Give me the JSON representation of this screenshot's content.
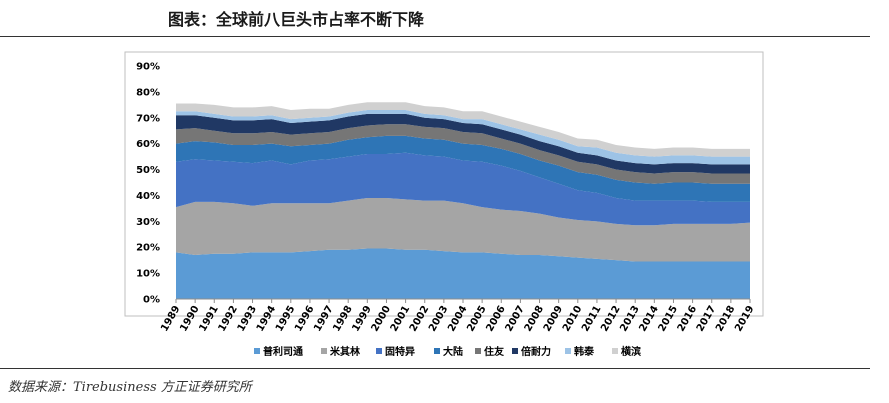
{
  "header": {
    "title": "图表：全球前八巨头市占率不断下降"
  },
  "footer": {
    "source": "数据来源：Tirebusiness 方正证券研究所"
  },
  "chart_data": {
    "type": "area",
    "stacked": true,
    "title": "",
    "xlabel": "",
    "ylabel": "",
    "ylim": [
      0,
      90
    ],
    "y_ticks": [
      "0%",
      "10%",
      "20%",
      "30%",
      "40%",
      "50%",
      "60%",
      "70%",
      "80%",
      "90%"
    ],
    "grid": false,
    "legend_position": "bottom",
    "x": [
      "1989",
      "1990",
      "1991",
      "1992",
      "1993",
      "1994",
      "1995",
      "1996",
      "1997",
      "1998",
      "1999",
      "2000",
      "2001",
      "2002",
      "2003",
      "2004",
      "2005",
      "2006",
      "2007",
      "2008",
      "2009",
      "2010",
      "2011",
      "2012",
      "2013",
      "2014",
      "2015",
      "2016",
      "2017",
      "2018",
      "2019"
    ],
    "series": [
      {
        "name": "普利司通",
        "color": "#5b9bd5",
        "values": [
          18,
          17,
          17.5,
          17.5,
          18,
          18,
          18,
          18.5,
          19,
          19,
          19.5,
          19.5,
          19,
          19,
          18.5,
          18,
          18,
          17.5,
          17,
          17,
          16.5,
          16,
          15.5,
          15,
          14.5,
          14.5,
          14.5,
          14.5,
          14.5,
          14.5,
          14.5
        ]
      },
      {
        "name": "米其林",
        "color": "#a5a5a5",
        "values": [
          17.5,
          20.5,
          20,
          19.5,
          18,
          19,
          19,
          18.5,
          18,
          19,
          19.5,
          19.5,
          19.5,
          19,
          19.5,
          19,
          17.5,
          17,
          17,
          16,
          15,
          14.5,
          14.5,
          14,
          14,
          14,
          14.5,
          14.5,
          14.5,
          14.5,
          15
        ]
      },
      {
        "name": "固特异",
        "color": "#4472c4",
        "values": [
          17.5,
          16.5,
          16,
          16,
          16.5,
          16.5,
          15,
          16.5,
          17,
          17,
          17,
          17,
          18,
          17.5,
          17,
          16.5,
          17.5,
          17,
          15.5,
          14,
          13,
          11.5,
          11,
          10,
          9.5,
          9.5,
          9,
          9,
          8.5,
          8.5,
          8
        ]
      },
      {
        "name": "大陆",
        "color": "#2e75b6",
        "values": [
          7,
          7,
          7,
          6.5,
          7,
          6.5,
          7,
          6,
          6,
          6.5,
          6.5,
          7,
          6.5,
          6.5,
          6.5,
          6.5,
          6.5,
          6.5,
          6.5,
          6.5,
          7,
          7,
          7,
          7,
          7,
          6.5,
          7,
          7,
          7,
          7,
          7
        ]
      },
      {
        "name": "住友",
        "color": "#767676",
        "values": [
          5.5,
          5,
          4.5,
          4.5,
          4.5,
          4.5,
          4.5,
          4.5,
          4.5,
          4.5,
          4.5,
          4.5,
          4.5,
          4.5,
          4.5,
          4.5,
          4.5,
          4,
          4,
          4,
          4,
          4,
          4,
          4,
          4,
          4,
          4,
          4,
          4,
          4,
          4
        ]
      },
      {
        "name": "倍耐力",
        "color": "#203864",
        "values": [
          5.5,
          5,
          5,
          5,
          5,
          5,
          4.5,
          4.5,
          4.5,
          4.5,
          4.5,
          4,
          4,
          3.5,
          3.5,
          3.5,
          3.5,
          3.5,
          3.5,
          3.5,
          3.5,
          3.5,
          3.5,
          3.5,
          3.5,
          3.5,
          3.5,
          3.5,
          3.5,
          3.5,
          3.5
        ]
      },
      {
        "name": "韩泰",
        "color": "#9dc3e6",
        "values": [
          1.5,
          1.5,
          1.5,
          1.5,
          1.5,
          1.5,
          1.5,
          1.5,
          1.5,
          1.5,
          1.5,
          1.5,
          1.5,
          1.5,
          1.5,
          1.5,
          2,
          2,
          2,
          2.5,
          2.5,
          2.5,
          3,
          3,
          3,
          3,
          3,
          3,
          3,
          3,
          3
        ]
      },
      {
        "name": "横滨",
        "color": "#d0d0d0",
        "values": [
          3,
          3,
          3.5,
          3.5,
          3.5,
          3.5,
          3.5,
          3.5,
          3,
          3,
          3,
          3,
          3,
          3,
          3,
          3,
          3,
          3,
          3,
          3,
          3,
          3,
          3,
          3,
          3,
          3,
          3,
          3,
          3,
          3,
          3
        ]
      }
    ]
  }
}
